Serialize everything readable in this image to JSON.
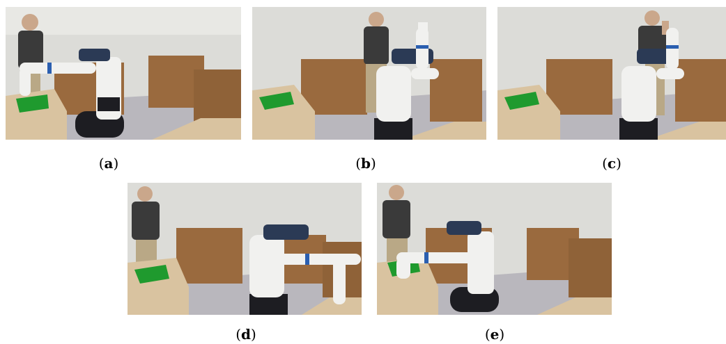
{
  "figure": {
    "panels": [
      {
        "id": "a",
        "caption_open": "(",
        "label": "a",
        "caption_close": ")",
        "scene": "robot-arm-reaching-green-bin"
      },
      {
        "id": "b",
        "caption_open": "(",
        "label": "b",
        "caption_close": ")",
        "scene": "robot-arm-raised-up"
      },
      {
        "id": "c",
        "caption_open": "(",
        "label": "c",
        "caption_close": ")",
        "scene": "robot-arm-raised-person-gesturing"
      },
      {
        "id": "d",
        "caption_open": "(",
        "label": "d",
        "caption_close": ")",
        "scene": "robot-arm-reaching-right-table"
      },
      {
        "id": "e",
        "caption_open": "(",
        "label": "e",
        "caption_close": ")",
        "scene": "robot-arm-reaching-green-bin-left"
      }
    ],
    "colors": {
      "wall": "#dcdcd8",
      "floor": "#b9b7bd",
      "box": "#9a6a3e",
      "box_top": "#b58453",
      "table": "#d9c3a0",
      "robot_white": "#f1f1ef",
      "robot_blue": "#2b5fb0",
      "robot_black": "#1d1d22",
      "bin_green": "#1f9a2e",
      "person_shirt": "#3a3a3a",
      "person_pants": "#b9a886"
    }
  }
}
